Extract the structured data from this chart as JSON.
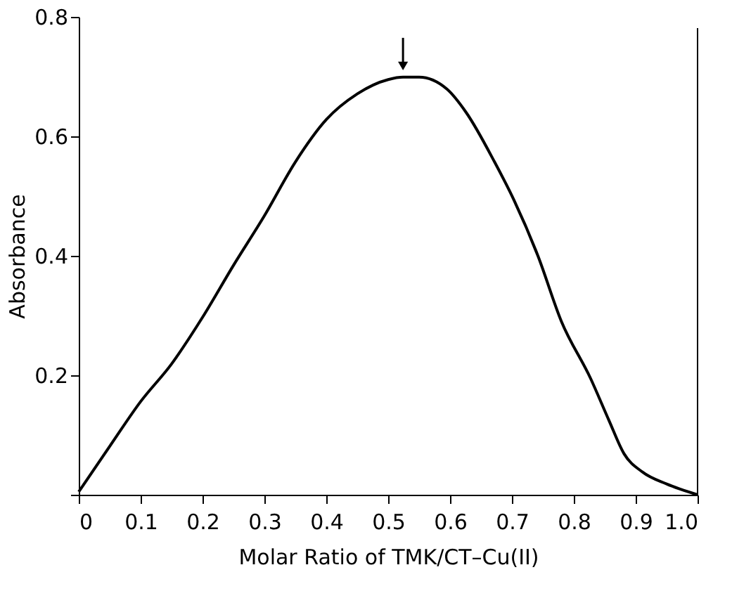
{
  "chart_data": {
    "type": "line",
    "xlabel": "Molar Ratio of TMK/CT–Cu(II)",
    "ylabel": "Absorbance",
    "x": [
      0,
      0.05,
      0.1,
      0.15,
      0.2,
      0.25,
      0.3,
      0.35,
      0.4,
      0.45,
      0.5,
      0.524,
      0.55,
      0.595,
      0.626,
      0.672,
      0.703,
      0.742,
      0.78,
      0.827,
      0.857,
      0.881,
      0.911,
      0.95,
      1.0
    ],
    "series": [
      {
        "color": "#000000",
        "values": [
          0.005,
          0.081,
          0.156,
          0.219,
          0.297,
          0.384,
          0.467,
          0.557,
          0.628,
          0.671,
          0.695,
          0.699,
          0.699,
          0.679,
          0.64,
          0.557,
          0.494,
          0.4,
          0.29,
          0.195,
          0.124,
          0.069,
          0.038,
          0.018,
          0.0
        ]
      }
    ],
    "xlim": [
      0,
      1.0
    ],
    "ylim": [
      0,
      0.8
    ],
    "xticks": [
      0,
      0.1,
      0.2,
      0.3,
      0.4,
      0.5,
      0.6,
      0.7,
      0.8,
      0.9,
      {
        "value": 1.0,
        "label": "1.0"
      }
    ],
    "yticks": [
      {
        "value": 0,
        "label": null
      },
      0.2,
      0.4,
      0.6,
      0.8
    ],
    "grid": false
  }
}
